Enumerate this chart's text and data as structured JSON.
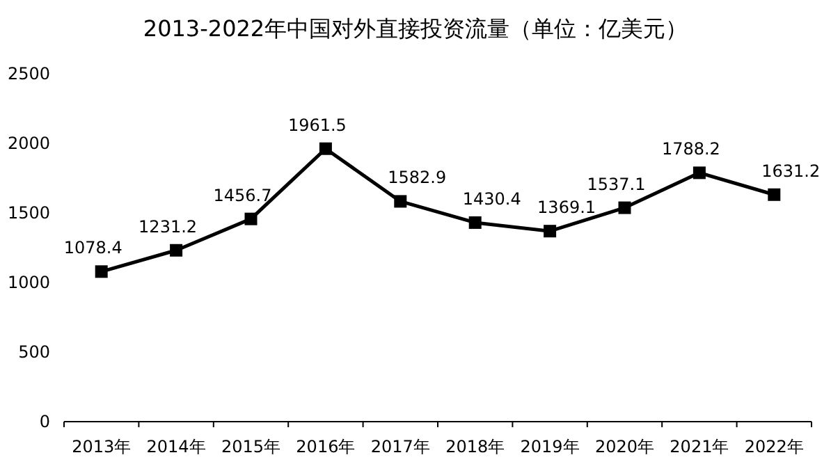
{
  "chart_data": {
    "type": "line",
    "title": "2013-2022年中国对外直接投资流量（单位：亿美元）",
    "categories": [
      "2013年",
      "2014年",
      "2015年",
      "2016年",
      "2017年",
      "2018年",
      "2019年",
      "2020年",
      "2021年",
      "2022年"
    ],
    "series": [
      {
        "color": "#000000",
        "values": [
          1078.4,
          1231.2,
          1456.7,
          1961.5,
          1582.9,
          1430.4,
          1369.1,
          1537.1,
          1788.2,
          1631.2
        ]
      }
    ],
    "ylim": [
      0,
      2500
    ],
    "yticks": [
      0,
      500,
      1000,
      1500,
      2000,
      2500
    ],
    "data_labels": true,
    "marker": "square",
    "line_style": "solid",
    "grid": false
  }
}
